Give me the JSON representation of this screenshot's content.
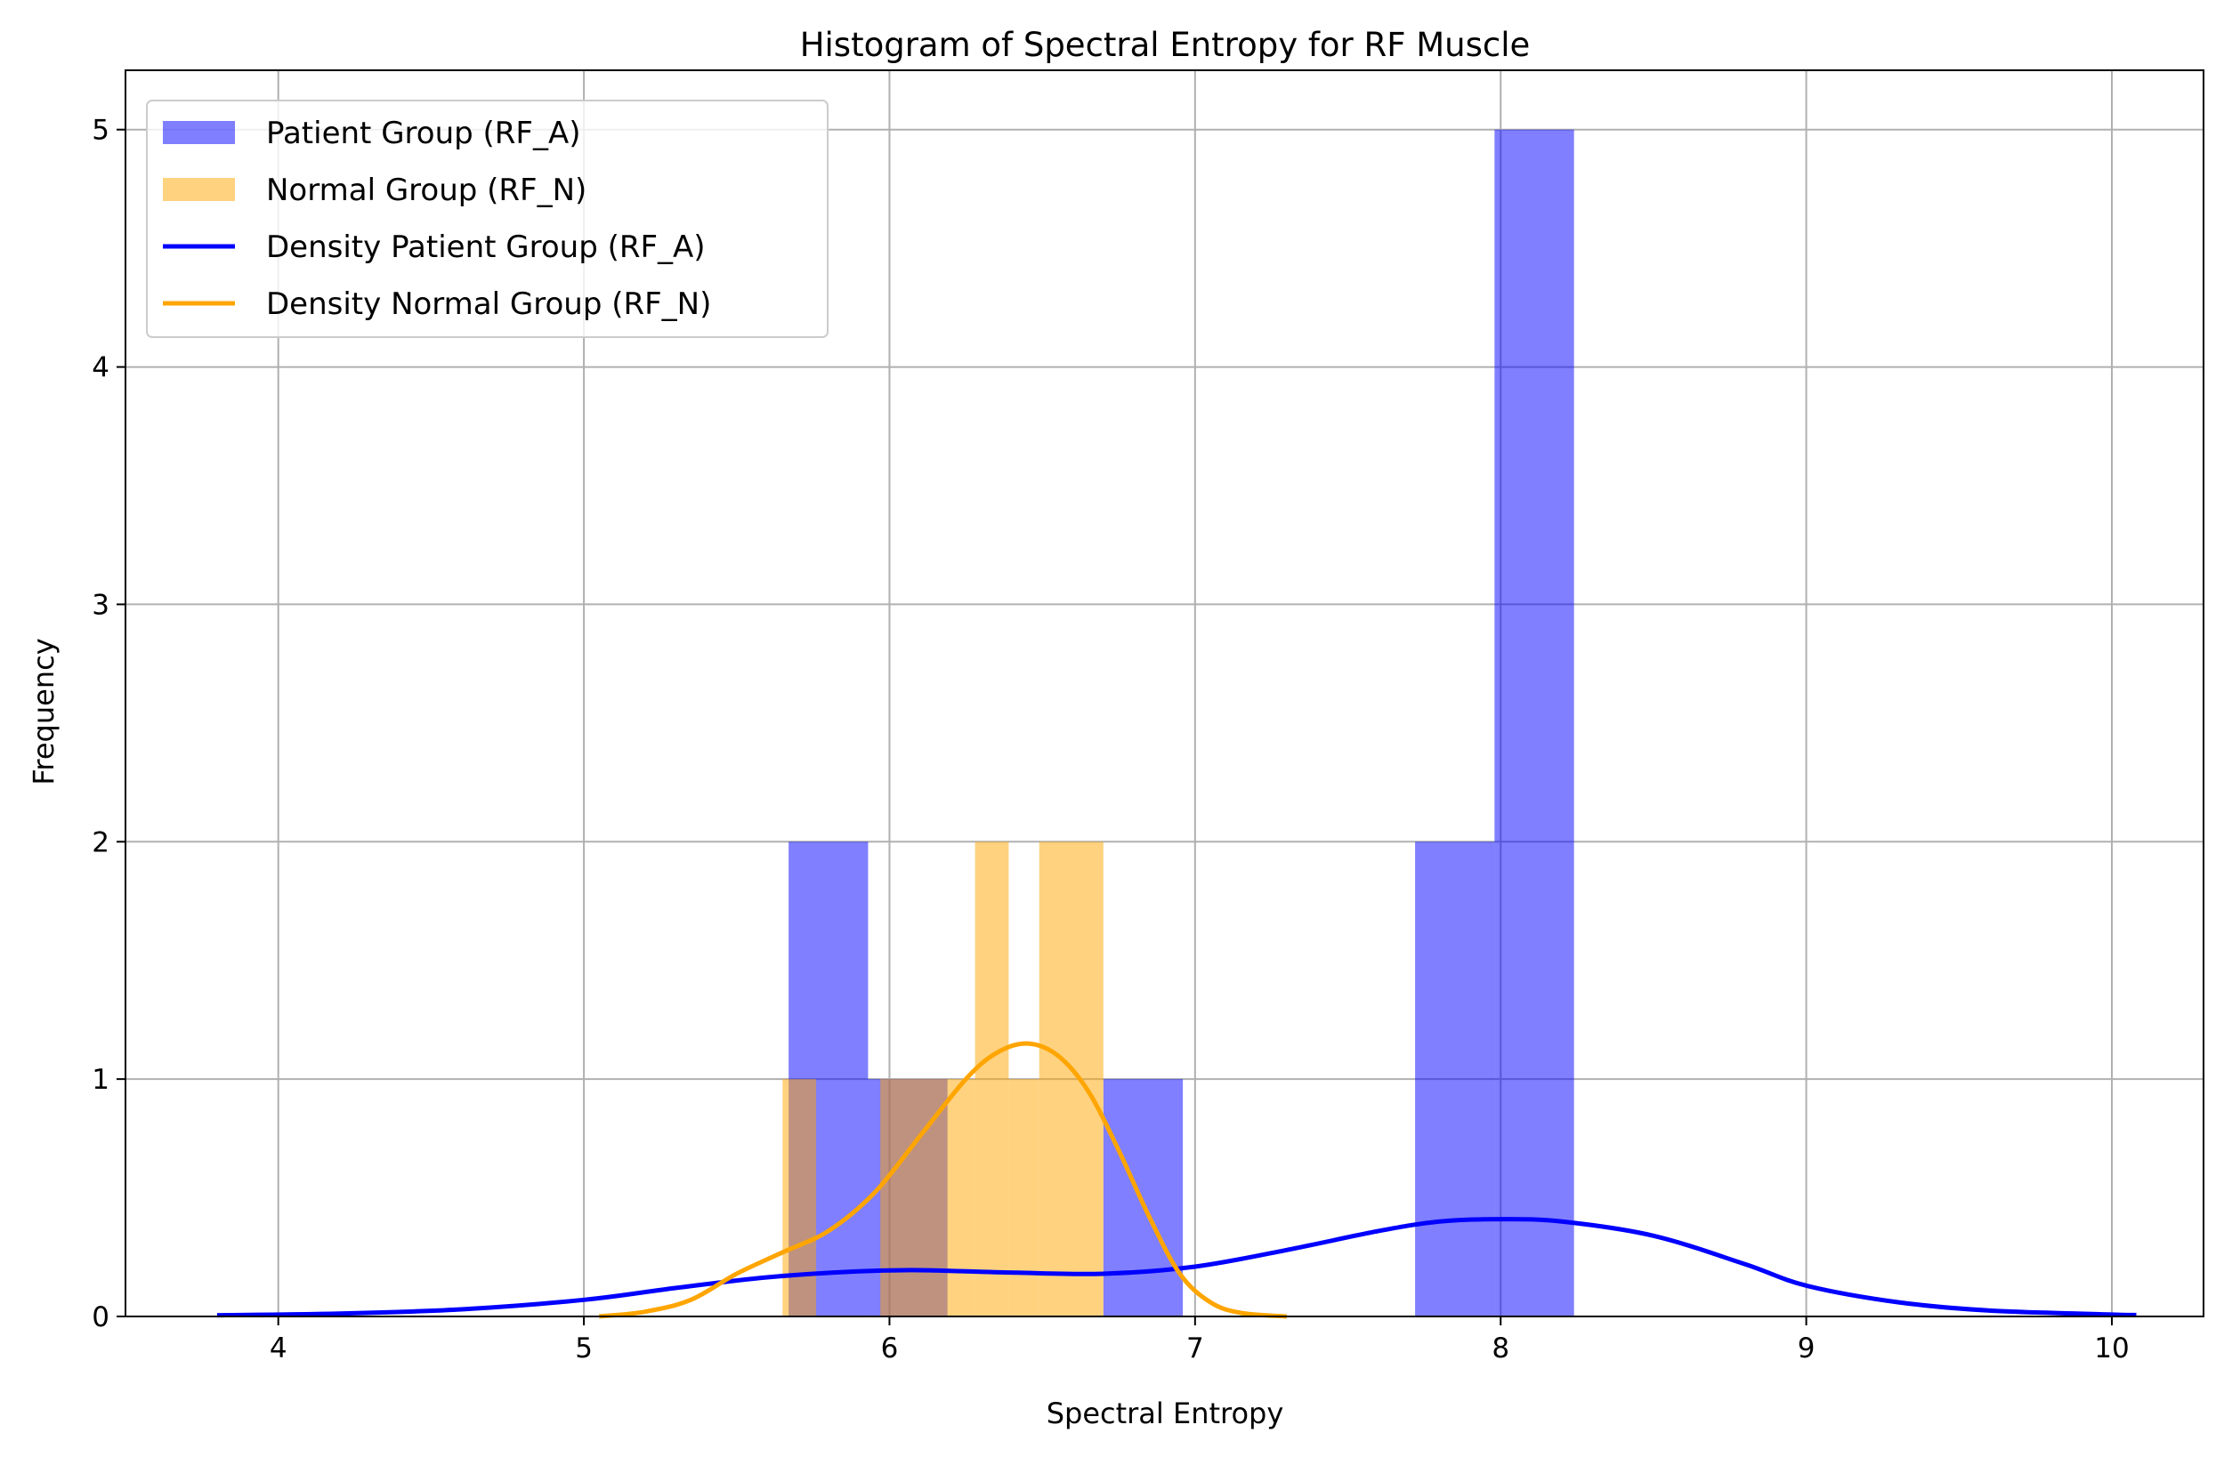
{
  "chart_data": {
    "type": "bar",
    "title": "Histogram of Spectral Entropy for RF Muscle",
    "xlabel": "Spectral Entropy",
    "ylabel": "Frequency",
    "xlim": [
      3.5,
      10.3
    ],
    "ylim": [
      0,
      5.25
    ],
    "xticks": [
      4,
      5,
      6,
      7,
      8,
      9,
      10
    ],
    "yticks": [
      0,
      1,
      2,
      3,
      4,
      5
    ],
    "grid": true,
    "legend_position": "top-left",
    "histograms": [
      {
        "name": "Patient Group (RF_A)",
        "color": "#0000ff",
        "opacity": 0.5,
        "bins": [
          {
            "x0": 5.67,
            "x1": 5.93,
            "count": 2
          },
          {
            "x0": 5.93,
            "x1": 6.19,
            "count": 1
          },
          {
            "x0": 6.19,
            "x1": 6.45,
            "count": 0
          },
          {
            "x0": 6.45,
            "x1": 6.7,
            "count": 0
          },
          {
            "x0": 6.7,
            "x1": 6.96,
            "count": 1
          },
          {
            "x0": 6.96,
            "x1": 7.22,
            "count": 0
          },
          {
            "x0": 7.22,
            "x1": 7.47,
            "count": 0
          },
          {
            "x0": 7.47,
            "x1": 7.72,
            "count": 0
          },
          {
            "x0": 7.72,
            "x1": 7.98,
            "count": 2
          },
          {
            "x0": 7.98,
            "x1": 8.24,
            "count": 5
          }
        ]
      },
      {
        "name": "Normal Group (RF_N)",
        "color": "#ffa500",
        "opacity": 0.5,
        "bins": [
          {
            "x0": 5.65,
            "x1": 5.76,
            "count": 1
          },
          {
            "x0": 5.76,
            "x1": 5.97,
            "count": 0
          },
          {
            "x0": 5.97,
            "x1": 6.18,
            "count": 1
          },
          {
            "x0": 6.18,
            "x1": 6.28,
            "count": 1
          },
          {
            "x0": 6.28,
            "x1": 6.39,
            "count": 2
          },
          {
            "x0": 6.39,
            "x1": 6.49,
            "count": 1
          },
          {
            "x0": 6.49,
            "x1": 6.7,
            "count": 2
          }
        ]
      }
    ],
    "series": [
      {
        "name": "Density Patient Group (RF_A)",
        "color": "#0000ff",
        "x": [
          3.8,
          4.2,
          4.6,
          5.0,
          5.3,
          5.6,
          5.9,
          6.1,
          6.4,
          6.7,
          7.0,
          7.3,
          7.6,
          7.8,
          8.0,
          8.2,
          8.5,
          8.8,
          9.0,
          9.3,
          9.6,
          10.0,
          10.08
        ],
        "y": [
          0.005,
          0.012,
          0.03,
          0.07,
          0.12,
          0.165,
          0.19,
          0.195,
          0.185,
          0.18,
          0.21,
          0.28,
          0.36,
          0.4,
          0.41,
          0.4,
          0.34,
          0.22,
          0.13,
          0.06,
          0.025,
          0.008,
          0.006
        ]
      },
      {
        "name": "Density Normal Group (RF_N)",
        "color": "#ffa500",
        "x": [
          5.05,
          5.2,
          5.35,
          5.5,
          5.65,
          5.8,
          5.95,
          6.1,
          6.25,
          6.35,
          6.45,
          6.55,
          6.65,
          6.75,
          6.85,
          6.95,
          7.05,
          7.15,
          7.3
        ],
        "y": [
          0.0,
          0.02,
          0.07,
          0.18,
          0.27,
          0.36,
          0.52,
          0.76,
          1.0,
          1.11,
          1.15,
          1.1,
          0.95,
          0.7,
          0.42,
          0.18,
          0.06,
          0.015,
          0.0
        ]
      }
    ]
  }
}
